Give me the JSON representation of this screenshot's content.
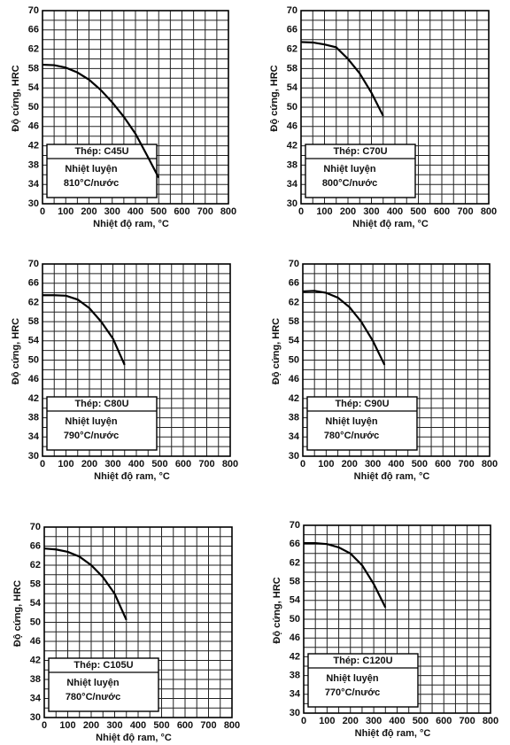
{
  "chart_data": [
    {
      "type": "line",
      "y_label": "Độ cứng, HRC",
      "x_label": "Nhiệt độ ram, °C",
      "steel_label": "Thép: C45U",
      "treatment": "Nhiệt luyện",
      "treatment_temp": "810°C/nước",
      "x": [
        0,
        50,
        100,
        150,
        200,
        250,
        300,
        350,
        400,
        450,
        500
      ],
      "values": [
        58.8,
        58.7,
        58.2,
        57.2,
        55.7,
        53.6,
        51.0,
        48.0,
        44.5,
        40.0,
        35.4
      ],
      "color": "#000000",
      "xlim": [
        0,
        800
      ],
      "xticks": [
        0,
        100,
        200,
        300,
        400,
        500,
        600,
        700,
        800
      ],
      "ylim": [
        30,
        70
      ],
      "yticks": [
        30,
        34,
        38,
        42,
        46,
        50,
        54,
        58,
        62,
        66,
        70
      ],
      "grid": true
    },
    {
      "type": "line",
      "y_label": "Độ cứng, HRC",
      "x_label": "Nhiệt độ ram, °C",
      "steel_label": "Thép: C70U",
      "treatment": "Nhiệt luyện",
      "treatment_temp": "800°C/nước",
      "x": [
        0,
        50,
        100,
        150,
        200,
        250,
        300,
        350
      ],
      "values": [
        63.5,
        63.4,
        63.0,
        62.4,
        60.0,
        57.0,
        53.0,
        48.2
      ],
      "color": "#000000",
      "xlim": [
        0,
        800
      ],
      "xticks": [
        0,
        100,
        200,
        300,
        400,
        500,
        600,
        700,
        800
      ],
      "ylim": [
        30,
        70
      ],
      "yticks": [
        30,
        34,
        38,
        42,
        46,
        50,
        54,
        58,
        62,
        66,
        70
      ],
      "grid": true
    },
    {
      "type": "line",
      "y_label": "Độ cứng, HRC",
      "x_label": "Nhiệt độ ram, °C",
      "steel_label": "Thép: C80U",
      "treatment": "Nhiệt luyện",
      "treatment_temp": "790°C/nước",
      "x": [
        0,
        50,
        100,
        150,
        200,
        250,
        300,
        350
      ],
      "values": [
        63.5,
        63.5,
        63.4,
        62.6,
        60.8,
        58.0,
        54.5,
        49.0
      ],
      "color": "#000000",
      "xlim": [
        0,
        800
      ],
      "xticks": [
        0,
        100,
        200,
        300,
        400,
        500,
        600,
        700,
        800
      ],
      "ylim": [
        30,
        70
      ],
      "yticks": [
        30,
        34,
        38,
        42,
        46,
        50,
        54,
        58,
        62,
        66,
        70
      ],
      "grid": true
    },
    {
      "type": "line",
      "y_label": "Độ cứng, HRC",
      "x_label": "Nhiệt độ ram, °C",
      "steel_label": "Thép: C90U",
      "treatment": "Nhiệt luyện",
      "treatment_temp": "780°C/nước",
      "x": [
        0,
        50,
        100,
        150,
        200,
        250,
        300,
        350
      ],
      "values": [
        64.3,
        64.4,
        64.0,
        63.0,
        61.0,
        58.0,
        54.0,
        49.0
      ],
      "color": "#000000",
      "xlim": [
        0,
        800
      ],
      "xticks": [
        0,
        100,
        200,
        300,
        400,
        500,
        600,
        700,
        800
      ],
      "ylim": [
        30,
        70
      ],
      "yticks": [
        30,
        34,
        38,
        42,
        46,
        50,
        54,
        58,
        62,
        66,
        70
      ],
      "grid": true
    },
    {
      "type": "line",
      "y_label": "Độ cứng, HRC",
      "x_label": "Nhiệt độ ram, °C",
      "steel_label": "Thép: C105U",
      "treatment": "Nhiệt luyện",
      "treatment_temp": "780°C/nước",
      "x": [
        0,
        50,
        100,
        150,
        200,
        250,
        300,
        350
      ],
      "values": [
        65.5,
        65.3,
        64.8,
        63.8,
        62.0,
        59.5,
        56.0,
        50.5
      ],
      "color": "#000000",
      "xlim": [
        0,
        800
      ],
      "xticks": [
        0,
        100,
        200,
        300,
        400,
        500,
        600,
        700,
        800
      ],
      "ylim": [
        30,
        70
      ],
      "yticks": [
        30,
        34,
        38,
        42,
        46,
        50,
        54,
        58,
        62,
        66,
        70
      ],
      "grid": true
    },
    {
      "type": "line",
      "y_label": "Độ cứng, HRC",
      "x_label": "Nhiệt độ ram, °C",
      "steel_label": "Thép: C120U",
      "treatment": "Nhiệt luyện",
      "treatment_temp": "770°C/nước",
      "x": [
        0,
        50,
        100,
        150,
        200,
        250,
        300,
        350
      ],
      "values": [
        66.2,
        66.2,
        66.0,
        65.3,
        64.0,
        61.5,
        57.5,
        52.5
      ],
      "color": "#000000",
      "xlim": [
        0,
        800
      ],
      "xticks": [
        0,
        100,
        200,
        300,
        400,
        500,
        600,
        700,
        800
      ],
      "ylim": [
        30,
        70
      ],
      "yticks": [
        30,
        34,
        38,
        42,
        46,
        50,
        54,
        58,
        62,
        66,
        70
      ],
      "grid": true
    }
  ]
}
